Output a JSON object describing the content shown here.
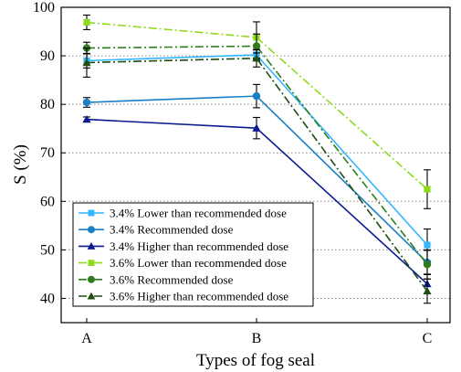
{
  "chart_data": {
    "type": "line",
    "categories": [
      "A",
      "B",
      "C"
    ],
    "xlabel": "Types of fog seal",
    "ylabel": "S (%)",
    "ylim": [
      35,
      100
    ],
    "yticks": [
      40,
      50,
      60,
      70,
      80,
      90,
      100
    ],
    "grid": "horizontal dotted",
    "legend_position": "bottom-left",
    "series": [
      {
        "name": "3.4% Lower than recommended dose",
        "values": [
          89.0,
          90.2,
          51.0
        ],
        "errors": [
          1.5,
          1.0,
          3.3
        ],
        "color": "#33b5ff",
        "marker": "square",
        "line": "solid"
      },
      {
        "name": "3.4% Recommended dose",
        "values": [
          80.4,
          81.7,
          47.4
        ],
        "errors": [
          1.0,
          2.4,
          2.5
        ],
        "color": "#1a7fc4",
        "marker": "circle",
        "line": "solid"
      },
      {
        "name": "3.4% Higher than recommended dose",
        "values": [
          76.9,
          75.1,
          43.0
        ],
        "errors": [
          0.5,
          2.2,
          2.0
        ],
        "color": "#0b1a8f",
        "marker": "triangle",
        "line": "solid"
      },
      {
        "name": "3.6% Lower than recommended dose",
        "values": [
          96.9,
          93.8,
          62.5
        ],
        "errors": [
          1.5,
          3.2,
          4.0
        ],
        "color": "#8edb1c",
        "marker": "square",
        "line": "dashdot"
      },
      {
        "name": "3.6% Recommended dose",
        "values": [
          91.6,
          92.0,
          47.0
        ],
        "errors": [
          1.2,
          2.5,
          3.0
        ],
        "color": "#2f7d1c",
        "marker": "circle",
        "line": "dashdot"
      },
      {
        "name": "3.6% Higher than recommended dose",
        "values": [
          88.6,
          89.5,
          41.5
        ],
        "errors": [
          3.0,
          1.8,
          2.5
        ],
        "color": "#1f4d12",
        "marker": "triangle",
        "line": "dashdot"
      }
    ]
  }
}
